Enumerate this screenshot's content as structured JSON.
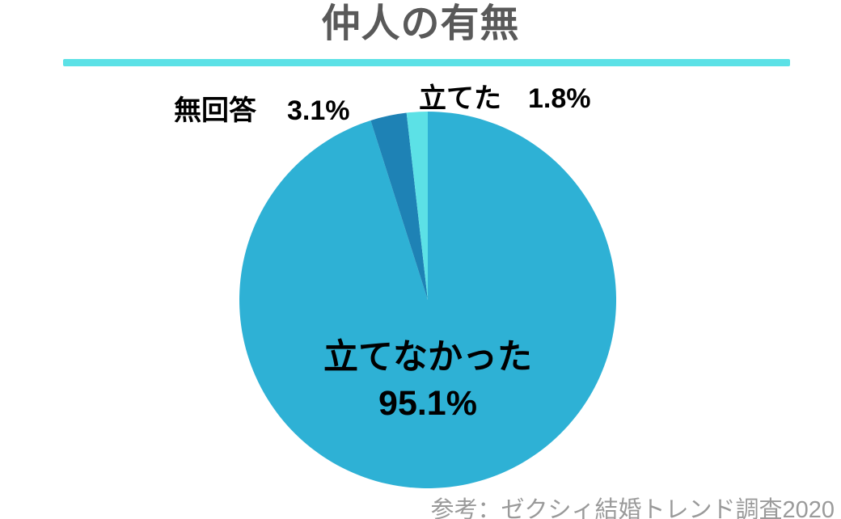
{
  "title": "仲人の有無",
  "title_color": "#595959",
  "accent_color": "#5CE1E6",
  "label_text_color": "#000000",
  "source_note": "参考：ゼクシィ結婚トレンド調査2020",
  "source_color": "#9A9A9A",
  "chart_data": {
    "type": "pie",
    "title": "仲人の有無",
    "start_angle_deg": 0,
    "direction": "clockwise",
    "legend": "none",
    "source": "参考：ゼクシィ結婚トレンド調査2020",
    "slices": [
      {
        "label": "立てなかった",
        "value_pct": 95.1,
        "value_label": "95.1%",
        "color": "#2EB1D5",
        "label_position": "inside-center"
      },
      {
        "label": "無回答",
        "value_pct": 3.1,
        "value_label": "3.1%",
        "color": "#1E82B5",
        "label_position": "outside-top-left"
      },
      {
        "label": "立てた",
        "value_pct": 1.8,
        "value_label": "1.8%",
        "color": "#5CE1E6",
        "label_position": "outside-top-right"
      }
    ]
  }
}
